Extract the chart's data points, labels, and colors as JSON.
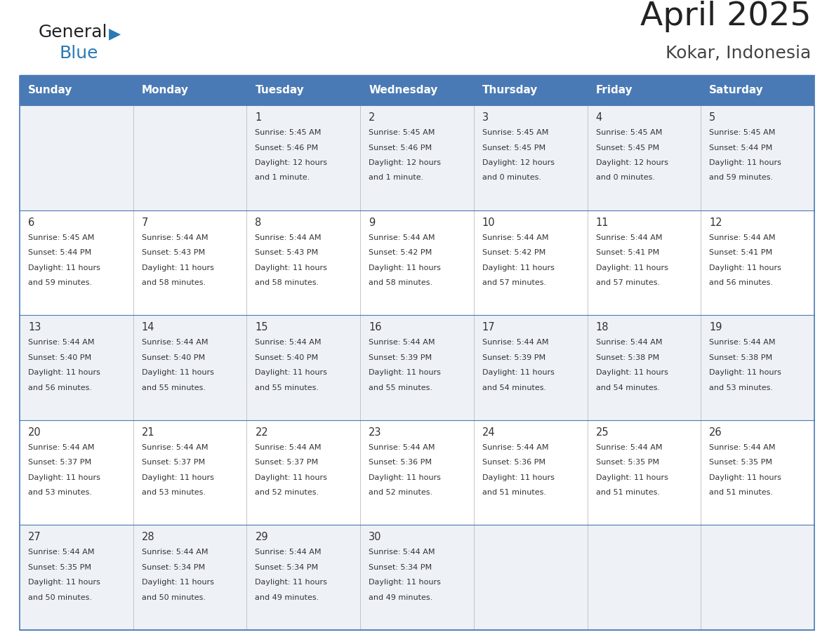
{
  "title": "April 2025",
  "subtitle": "Kokar, Indonesia",
  "header_color": "#4a7ab5",
  "header_text_color": "#ffffff",
  "days_of_week": [
    "Sunday",
    "Monday",
    "Tuesday",
    "Wednesday",
    "Thursday",
    "Friday",
    "Saturday"
  ],
  "bg_color": "#ffffff",
  "row_colors": [
    "#eef2f7",
    "#ffffff",
    "#eef2f7",
    "#ffffff",
    "#eef2f7"
  ],
  "cell_text_color": "#333333",
  "border_color": "#4a7ab5",
  "line_color": "#4a7ab5",
  "logo_general_color": "#222222",
  "logo_blue_color": "#2a7ab5",
  "title_color": "#222222",
  "subtitle_color": "#444444",
  "calendar_data": [
    [
      {
        "day": "",
        "sunrise": "",
        "sunset": "",
        "daylight": ""
      },
      {
        "day": "",
        "sunrise": "",
        "sunset": "",
        "daylight": ""
      },
      {
        "day": "1",
        "sunrise": "5:45 AM",
        "sunset": "5:46 PM",
        "daylight_line1": "Daylight: 12 hours",
        "daylight_line2": "and 1 minute."
      },
      {
        "day": "2",
        "sunrise": "5:45 AM",
        "sunset": "5:46 PM",
        "daylight_line1": "Daylight: 12 hours",
        "daylight_line2": "and 1 minute."
      },
      {
        "day": "3",
        "sunrise": "5:45 AM",
        "sunset": "5:45 PM",
        "daylight_line1": "Daylight: 12 hours",
        "daylight_line2": "and 0 minutes."
      },
      {
        "day": "4",
        "sunrise": "5:45 AM",
        "sunset": "5:45 PM",
        "daylight_line1": "Daylight: 12 hours",
        "daylight_line2": "and 0 minutes."
      },
      {
        "day": "5",
        "sunrise": "5:45 AM",
        "sunset": "5:44 PM",
        "daylight_line1": "Daylight: 11 hours",
        "daylight_line2": "and 59 minutes."
      }
    ],
    [
      {
        "day": "6",
        "sunrise": "5:45 AM",
        "sunset": "5:44 PM",
        "daylight_line1": "Daylight: 11 hours",
        "daylight_line2": "and 59 minutes."
      },
      {
        "day": "7",
        "sunrise": "5:44 AM",
        "sunset": "5:43 PM",
        "daylight_line1": "Daylight: 11 hours",
        "daylight_line2": "and 58 minutes."
      },
      {
        "day": "8",
        "sunrise": "5:44 AM",
        "sunset": "5:43 PM",
        "daylight_line1": "Daylight: 11 hours",
        "daylight_line2": "and 58 minutes."
      },
      {
        "day": "9",
        "sunrise": "5:44 AM",
        "sunset": "5:42 PM",
        "daylight_line1": "Daylight: 11 hours",
        "daylight_line2": "and 58 minutes."
      },
      {
        "day": "10",
        "sunrise": "5:44 AM",
        "sunset": "5:42 PM",
        "daylight_line1": "Daylight: 11 hours",
        "daylight_line2": "and 57 minutes."
      },
      {
        "day": "11",
        "sunrise": "5:44 AM",
        "sunset": "5:41 PM",
        "daylight_line1": "Daylight: 11 hours",
        "daylight_line2": "and 57 minutes."
      },
      {
        "day": "12",
        "sunrise": "5:44 AM",
        "sunset": "5:41 PM",
        "daylight_line1": "Daylight: 11 hours",
        "daylight_line2": "and 56 minutes."
      }
    ],
    [
      {
        "day": "13",
        "sunrise": "5:44 AM",
        "sunset": "5:40 PM",
        "daylight_line1": "Daylight: 11 hours",
        "daylight_line2": "and 56 minutes."
      },
      {
        "day": "14",
        "sunrise": "5:44 AM",
        "sunset": "5:40 PM",
        "daylight_line1": "Daylight: 11 hours",
        "daylight_line2": "and 55 minutes."
      },
      {
        "day": "15",
        "sunrise": "5:44 AM",
        "sunset": "5:40 PM",
        "daylight_line1": "Daylight: 11 hours",
        "daylight_line2": "and 55 minutes."
      },
      {
        "day": "16",
        "sunrise": "5:44 AM",
        "sunset": "5:39 PM",
        "daylight_line1": "Daylight: 11 hours",
        "daylight_line2": "and 55 minutes."
      },
      {
        "day": "17",
        "sunrise": "5:44 AM",
        "sunset": "5:39 PM",
        "daylight_line1": "Daylight: 11 hours",
        "daylight_line2": "and 54 minutes."
      },
      {
        "day": "18",
        "sunrise": "5:44 AM",
        "sunset": "5:38 PM",
        "daylight_line1": "Daylight: 11 hours",
        "daylight_line2": "and 54 minutes."
      },
      {
        "day": "19",
        "sunrise": "5:44 AM",
        "sunset": "5:38 PM",
        "daylight_line1": "Daylight: 11 hours",
        "daylight_line2": "and 53 minutes."
      }
    ],
    [
      {
        "day": "20",
        "sunrise": "5:44 AM",
        "sunset": "5:37 PM",
        "daylight_line1": "Daylight: 11 hours",
        "daylight_line2": "and 53 minutes."
      },
      {
        "day": "21",
        "sunrise": "5:44 AM",
        "sunset": "5:37 PM",
        "daylight_line1": "Daylight: 11 hours",
        "daylight_line2": "and 53 minutes."
      },
      {
        "day": "22",
        "sunrise": "5:44 AM",
        "sunset": "5:37 PM",
        "daylight_line1": "Daylight: 11 hours",
        "daylight_line2": "and 52 minutes."
      },
      {
        "day": "23",
        "sunrise": "5:44 AM",
        "sunset": "5:36 PM",
        "daylight_line1": "Daylight: 11 hours",
        "daylight_line2": "and 52 minutes."
      },
      {
        "day": "24",
        "sunrise": "5:44 AM",
        "sunset": "5:36 PM",
        "daylight_line1": "Daylight: 11 hours",
        "daylight_line2": "and 51 minutes."
      },
      {
        "day": "25",
        "sunrise": "5:44 AM",
        "sunset": "5:35 PM",
        "daylight_line1": "Daylight: 11 hours",
        "daylight_line2": "and 51 minutes."
      },
      {
        "day": "26",
        "sunrise": "5:44 AM",
        "sunset": "5:35 PM",
        "daylight_line1": "Daylight: 11 hours",
        "daylight_line2": "and 51 minutes."
      }
    ],
    [
      {
        "day": "27",
        "sunrise": "5:44 AM",
        "sunset": "5:35 PM",
        "daylight_line1": "Daylight: 11 hours",
        "daylight_line2": "and 50 minutes."
      },
      {
        "day": "28",
        "sunrise": "5:44 AM",
        "sunset": "5:34 PM",
        "daylight_line1": "Daylight: 11 hours",
        "daylight_line2": "and 50 minutes."
      },
      {
        "day": "29",
        "sunrise": "5:44 AM",
        "sunset": "5:34 PM",
        "daylight_line1": "Daylight: 11 hours",
        "daylight_line2": "and 49 minutes."
      },
      {
        "day": "30",
        "sunrise": "5:44 AM",
        "sunset": "5:34 PM",
        "daylight_line1": "Daylight: 11 hours",
        "daylight_line2": "and 49 minutes."
      },
      {
        "day": "",
        "sunrise": "",
        "sunset": "",
        "daylight_line1": "",
        "daylight_line2": ""
      },
      {
        "day": "",
        "sunrise": "",
        "sunset": "",
        "daylight_line1": "",
        "daylight_line2": ""
      },
      {
        "day": "",
        "sunrise": "",
        "sunset": "",
        "daylight_line1": "",
        "daylight_line2": ""
      }
    ]
  ]
}
